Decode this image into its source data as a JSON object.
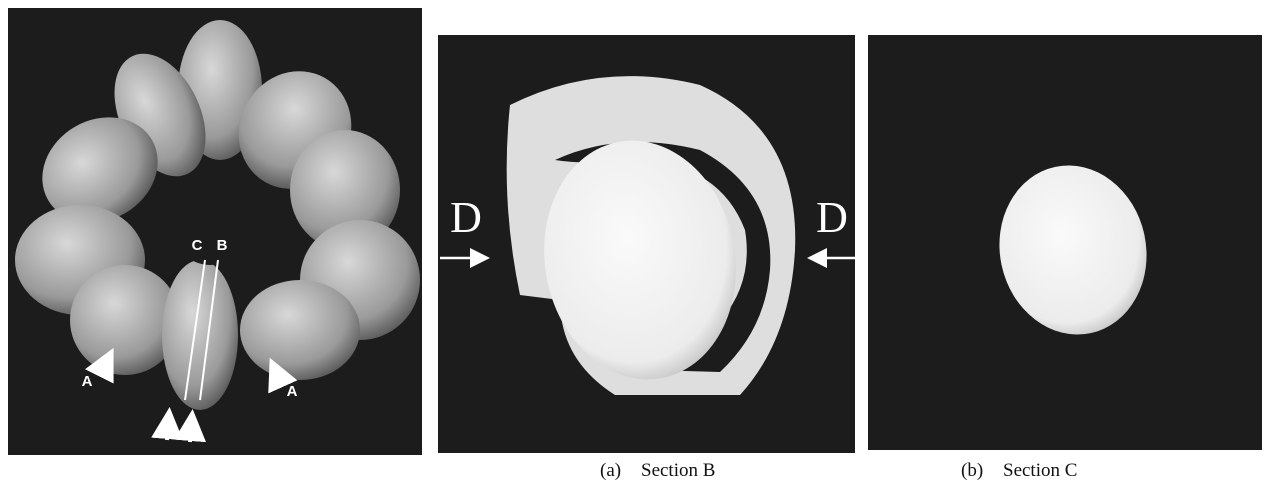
{
  "figure": {
    "specimen": {
      "labels": {
        "c": "C",
        "b": "B",
        "a_left": "A",
        "a_right": "A"
      }
    },
    "panel_a": {
      "marker_left": "D",
      "marker_right": "D",
      "caption_tag": "(a)",
      "caption": "Section B"
    },
    "panel_b": {
      "caption_tag": "(b)",
      "caption": "Section C"
    }
  }
}
